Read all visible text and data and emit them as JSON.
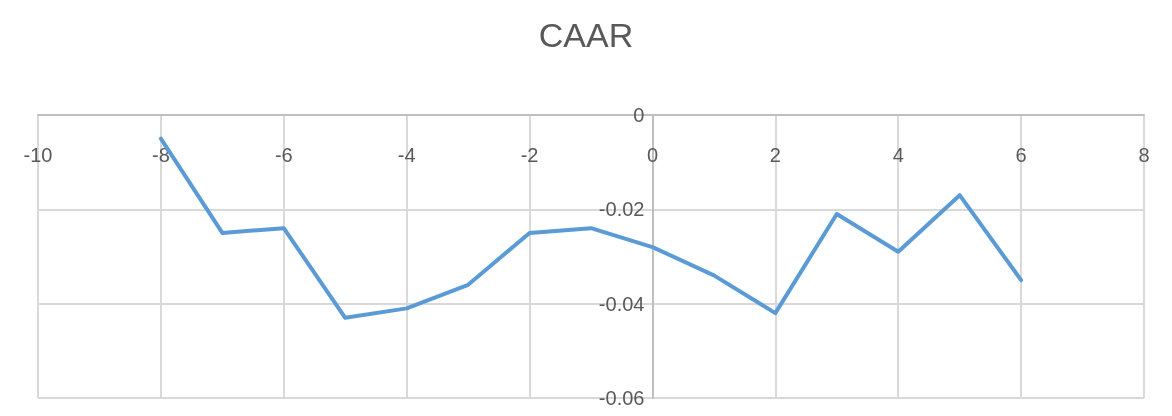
{
  "chart_data": {
    "type": "line",
    "title": "CAAR",
    "x": [
      -8,
      -7,
      -6,
      -5,
      -4,
      -3,
      -2,
      -1,
      0,
      1,
      2,
      3,
      4,
      5,
      6
    ],
    "series": [
      {
        "color": "#5b9bd5",
        "values": [
          -0.005,
          -0.025,
          -0.024,
          -0.043,
          -0.041,
          -0.036,
          -0.025,
          -0.024,
          -0.028,
          -0.034,
          -0.042,
          -0.021,
          -0.029,
          -0.017,
          -0.035
        ]
      }
    ],
    "xlim": [
      -10,
      8
    ],
    "xticks": [
      -10,
      -8,
      -6,
      -4,
      -2,
      0,
      2,
      4,
      6,
      8
    ],
    "ylim": [
      -0.06,
      0
    ],
    "yticks": [
      -0.06,
      -0.04,
      -0.02,
      0
    ],
    "grid": true,
    "marker": "none",
    "line_style": "solid"
  }
}
